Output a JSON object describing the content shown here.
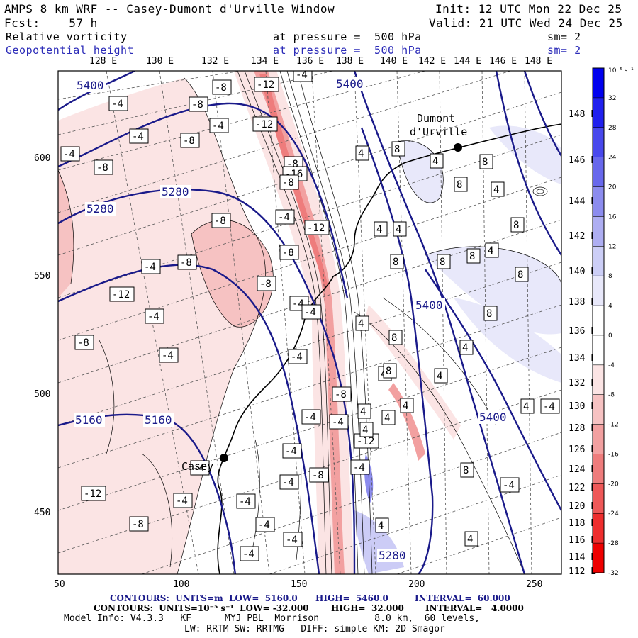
{
  "header": {
    "model_title": "AMPS 8 km WRF -- Casey-Dumont d'Urville Window",
    "init": "Init: 12 UTC Mon 22 Dec 25",
    "fcst": "Fcst:    57 h",
    "valid": "Valid: 21 UTC Wed 24 Dec 25",
    "field1_name": "Relative vorticity",
    "field1_level": "at pressure =  500 hPa",
    "field1_sm": "sm= 2",
    "field2_name": "Geopotential height",
    "field2_level": "at pressure =  500 hPa",
    "field2_sm": "sm= 2"
  },
  "axes": {
    "top_lon_labels": [
      "128 E",
      "130 E",
      "132 E",
      "134 E",
      "136 E",
      "138 E",
      "140 E",
      "142 E",
      "144 E",
      "146 E",
      "148 E"
    ],
    "right_lon_labels": [
      "148 E",
      "146 E",
      "144 E",
      "142 E",
      "140 E",
      "138 E",
      "136 E",
      "134 E",
      "132 E",
      "130 E",
      "128 E",
      "126 E",
      "124 E",
      "122 E",
      "120 E",
      "118 E",
      "116 E",
      "114 E",
      "112 E"
    ],
    "x_ticks": [
      "50",
      "100",
      "150",
      "200",
      "250"
    ],
    "y_ticks": [
      "600",
      "550",
      "500",
      "450"
    ]
  },
  "places": {
    "dumont": "Dumont\nd'Urville",
    "casey": "Casey"
  },
  "colorbar": {
    "unit": "10⁻⁵ s⁻¹",
    "labels": [
      "32",
      "28",
      "24",
      "20",
      "16",
      "12",
      "8",
      "4",
      "0",
      "-4",
      "-8",
      "-12",
      "-16",
      "-20",
      "-24",
      "-28",
      "-32"
    ],
    "colors": [
      "#0000ee",
      "#2020ee",
      "#4848ec",
      "#6868ec",
      "#8c8cee",
      "#aeaef2",
      "#cccef6",
      "#e8e8fa",
      "#ffffff",
      "#ffffff",
      "#fbe4e4",
      "#f6c2c2",
      "#f2a0a0",
      "#ee7c7c",
      "#ee5858",
      "#ee2e2e",
      "#ee0000"
    ]
  },
  "height_labels": [
    "5400",
    "5400",
    "5280",
    "5280",
    "5400",
    "5400",
    "5160",
    "5160",
    "5280"
  ],
  "vort_labels": [
    "-8",
    "-12",
    "-4",
    "-4",
    "-8",
    "-4",
    "-4",
    "-8",
    "-12",
    "-4",
    "-8",
    "-8",
    "-8",
    "-16",
    "-4",
    "-8",
    "-12",
    "-8",
    "-8",
    "-8",
    "-4",
    "-12",
    "-4",
    "-8",
    "-4",
    "-4",
    "-4",
    "-4",
    "-4",
    "-4",
    "-8",
    "-12",
    "-8",
    "-4",
    "-4",
    "-4",
    "-4",
    "-8",
    "-12",
    "-4",
    "-4",
    "-4",
    "-4",
    "-4",
    "4",
    "8",
    "4",
    "8",
    "4",
    "8",
    "4",
    "4",
    "8",
    "8",
    "4",
    "8",
    "4",
    "8",
    "8",
    "4",
    "8",
    "8",
    "4",
    "4",
    "4",
    "4",
    "8",
    "4",
    "4",
    "4",
    "4",
    "4",
    "-4",
    "-4",
    "8"
  ],
  "footer": {
    "line1_a": "CONTOURS:  UNITS=m  LOW=  5160.0",
    "line1_b": "HIGH=  5460.0",
    "line1_c": "INTERVAL=  60.000",
    "line2_a": "CONTOURS:  UNITS=10⁻⁵ s⁻¹  LOW= -32.000",
    "line2_b": "HIGH=  32.000",
    "line2_c": "INTERVAL=   4.0000",
    "line3": "Model Info: V4.3.3   KF      MYJ PBL  Morrison          8.0 km,  60 levels,",
    "line4": "LW: RRTM SW: RRTMG   DIFF: simple KM: 2D Smagor"
  }
}
